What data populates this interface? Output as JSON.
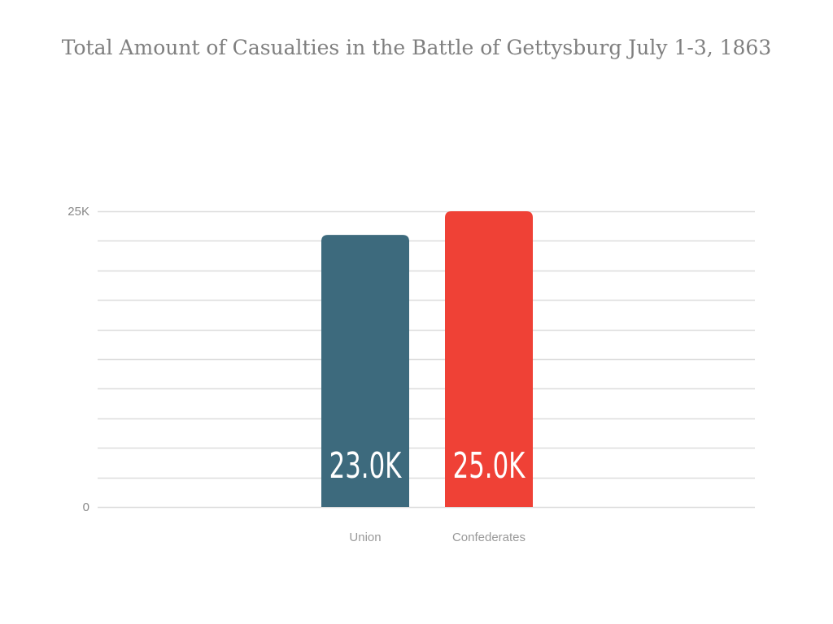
{
  "chart_data": {
    "type": "bar",
    "title": "Total Amount of Casualties in the Battle of Gettysburg July 1-3, 1863",
    "categories": [
      "Union",
      "Confederates"
    ],
    "values": [
      23000,
      25000
    ],
    "data_labels": [
      "23.0K",
      "25.0K"
    ],
    "bar_colors": [
      "#3d6a7d",
      "#ef4136"
    ],
    "ylim": [
      0,
      25000
    ],
    "y_ticks": [
      {
        "value": 0,
        "label": "0"
      },
      {
        "value": 25000,
        "label": "25K"
      }
    ],
    "gridline_count": 11,
    "grid": true,
    "xlabel": "",
    "ylabel": "",
    "legend": "none"
  }
}
